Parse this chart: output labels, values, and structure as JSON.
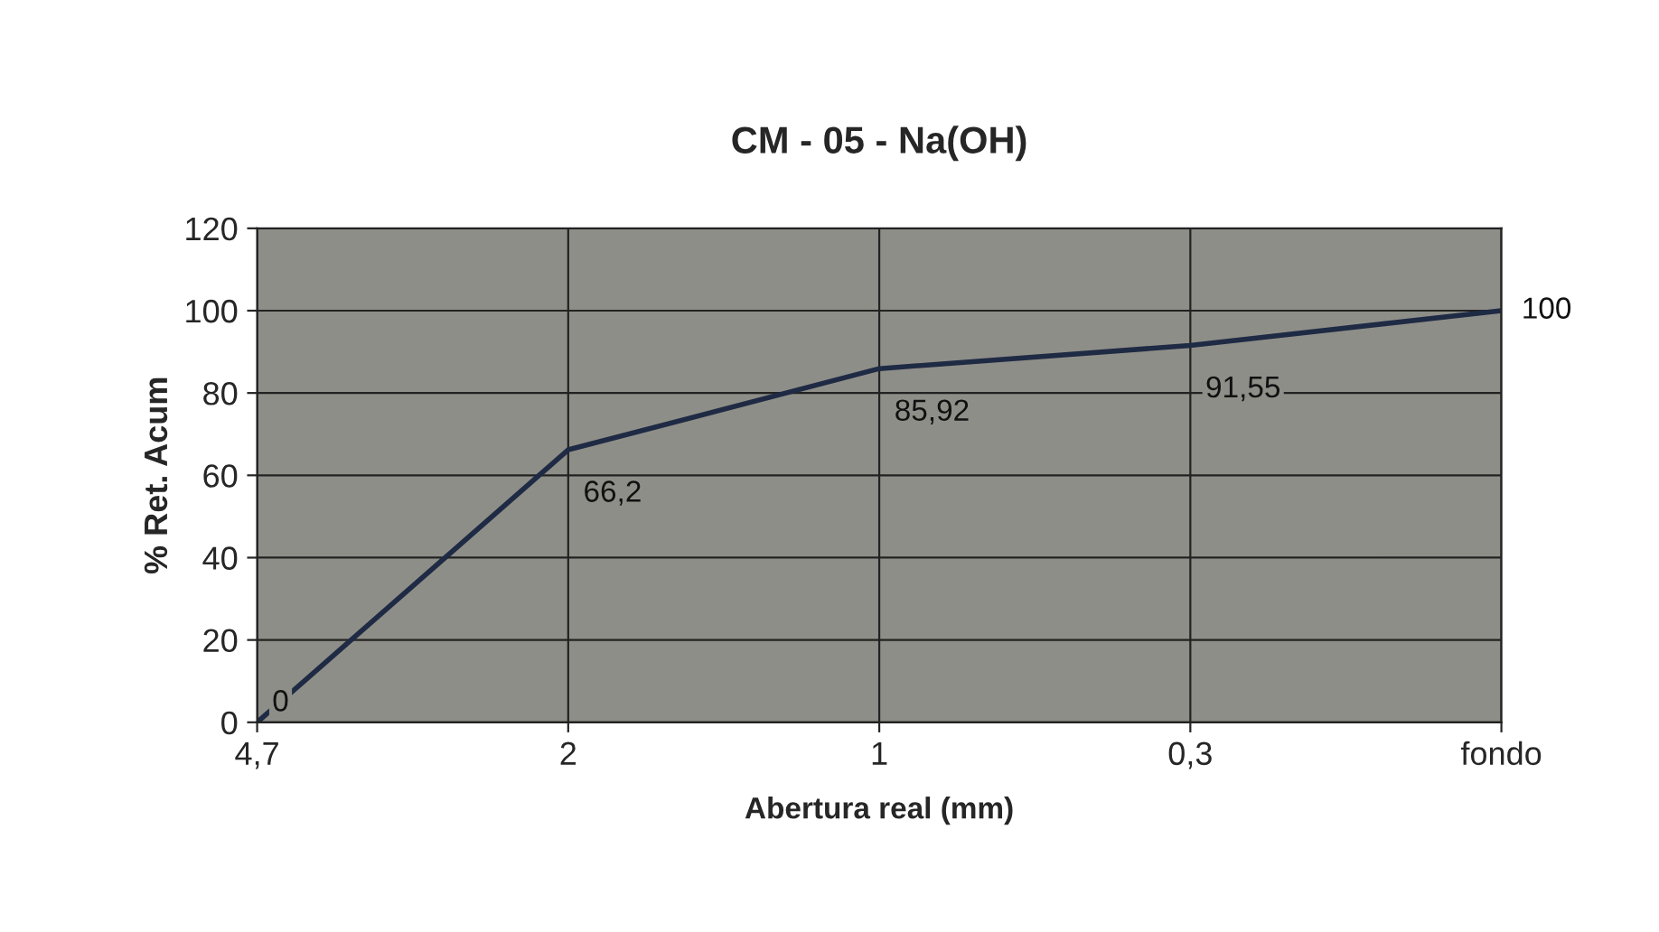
{
  "chart_data": {
    "type": "line",
    "title": "CM - 05 - Na(OH)",
    "xlabel": "Abertura real (mm)",
    "ylabel": "% Ret. Acum",
    "categories": [
      "4,7",
      "2",
      "1",
      "0,3",
      "fondo"
    ],
    "series": [
      {
        "color": "#1f2a44",
        "values": [
          0,
          66.2,
          85.92,
          91.55,
          100
        ],
        "value_labels": [
          "0",
          "66,2",
          "85,92",
          "91,55",
          "100"
        ]
      }
    ],
    "ylim": [
      0,
      120
    ],
    "yticks": [
      0,
      20,
      40,
      60,
      80,
      100,
      120
    ],
    "grid": true,
    "legend": false,
    "marker": "none",
    "line_style": "solid"
  }
}
